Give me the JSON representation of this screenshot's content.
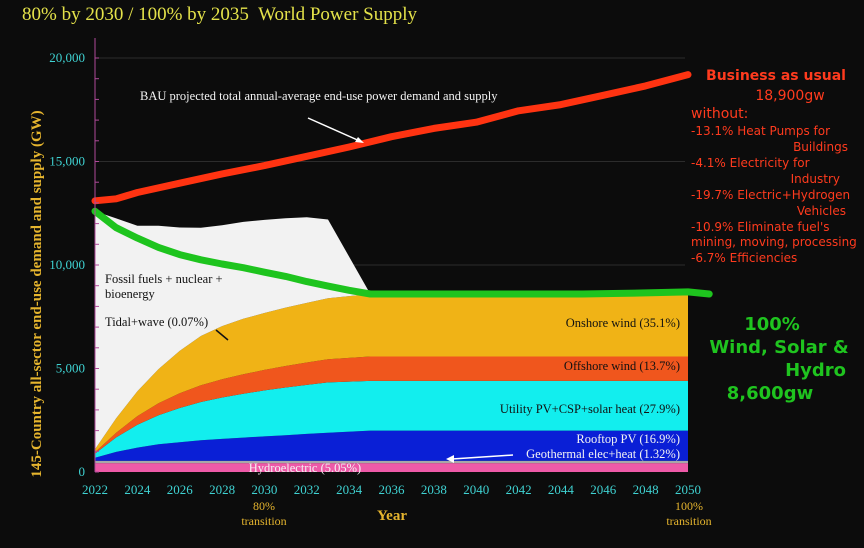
{
  "title": "80% by 2030 / 100% by 2035  World Power Supply",
  "chart_data": {
    "type": "area",
    "title": "80% by 2030 / 100% by 2035  World Power Supply",
    "xlabel": "Year",
    "ylabel": "145-Country all-sector end-use demand and supply (GW)",
    "xlim": [
      2022,
      2050
    ],
    "ylim": [
      0,
      20000
    ],
    "x_ticks": [
      "2022",
      "2024",
      "2026",
      "2028",
      "2030",
      "2032",
      "2034",
      "2036",
      "2038",
      "2040",
      "2042",
      "2044",
      "2046",
      "2048",
      "2050"
    ],
    "y_ticks": [
      {
        "value": 0,
        "label": "0"
      },
      {
        "value": 5000,
        "label": "5,000"
      },
      {
        "value": 10000,
        "label": "10,000"
      },
      {
        "value": 15000,
        "label": "15,000"
      },
      {
        "value": 20000,
        "label": "20,000"
      }
    ],
    "grid": true,
    "x_annotations": [
      {
        "x": 2030,
        "label": [
          "80%",
          "transition"
        ]
      },
      {
        "x": 2050,
        "label": [
          "100%",
          "transition"
        ]
      }
    ],
    "stack_x": [
      2022,
      2023,
      2024,
      2025,
      2026,
      2027,
      2028,
      2029,
      2030,
      2031,
      2032,
      2033,
      2035,
      2050
    ],
    "stacked_series": [
      {
        "name": "Hydroelectric (5.05%)",
        "color": "#ee5aa8",
        "values": [
          430,
          430,
          430,
          430,
          430,
          430,
          430,
          430,
          430,
          430,
          430,
          430,
          430,
          430
        ]
      },
      {
        "name": "Geothermal elec+heat (1.32%)",
        "color": "#a8a8a8",
        "values": [
          110,
          110,
          110,
          110,
          110,
          110,
          110,
          110,
          110,
          110,
          110,
          110,
          110,
          110
        ]
      },
      {
        "name": "Rooftop PV (16.9%)",
        "color": "#0a1fd6",
        "values": [
          150,
          430,
          640,
          800,
          900,
          990,
          1060,
          1120,
          1180,
          1240,
          1300,
          1360,
          1460,
          1460
        ]
      },
      {
        "name": "Utility PV+CSP+solar heat (27.9%)",
        "color": "#12eeee",
        "values": [
          200,
          700,
          1100,
          1400,
          1650,
          1850,
          2000,
          2120,
          2220,
          2300,
          2370,
          2430,
          2400,
          2400
        ]
      },
      {
        "name": "Offshore wind (13.7%)",
        "color": "#f0561d",
        "values": [
          60,
          230,
          420,
          580,
          710,
          810,
          880,
          940,
          990,
          1040,
          1080,
          1120,
          1180,
          1180
        ]
      },
      {
        "name": "Onshore wind (35.1%)",
        "color": "#f0b316",
        "values": [
          150,
          700,
          1200,
          1650,
          2050,
          2380,
          2570,
          2680,
          2750,
          2820,
          2880,
          2940,
          3020,
          3020
        ]
      },
      {
        "name": "Tidal+wave (0.07%)",
        "color": "#7a6a2a",
        "values": [
          0,
          0,
          0,
          0,
          0,
          0,
          0,
          0,
          0,
          0,
          0,
          0,
          0,
          0
        ]
      },
      {
        "name": "Fossil fuels + nuclear + bioenergy",
        "color": "#f2f2f2",
        "values": [
          11500,
          9650,
          8000,
          6930,
          5960,
          5230,
          4870,
          4680,
          4500,
          4320,
          4140,
          3810,
          0,
          0
        ]
      }
    ],
    "lines": [
      {
        "name": "BAU projected total annual-average end-use power demand and supply",
        "color": "#ff3311",
        "x": [
          2022,
          2023,
          2024,
          2026,
          2028,
          2030,
          2032,
          2034,
          2036,
          2038,
          2040,
          2042,
          2044,
          2046,
          2048,
          2050
        ],
        "values": [
          13100,
          13200,
          13500,
          13950,
          14400,
          14800,
          15250,
          15700,
          16200,
          16600,
          16900,
          17450,
          17750,
          18200,
          18650,
          19200
        ]
      },
      {
        "name": "100% Wind, Solar & Hydro supply",
        "color": "#1ec41e",
        "x": [
          2022,
          2023,
          2024,
          2025,
          2026,
          2027,
          2028,
          2029,
          2030,
          2031,
          2032,
          2033,
          2034,
          2035,
          2040,
          2045,
          2048,
          2050,
          2051
        ],
        "values": [
          12600,
          11800,
          11300,
          10850,
          10500,
          10250,
          10050,
          9870,
          9650,
          9450,
          9200,
          8980,
          8780,
          8600,
          8600,
          8600,
          8650,
          8700,
          8600
        ]
      }
    ],
    "annotations": {
      "bau_line_label": "BAU projected total annual-average end-use power demand and supply",
      "fossil_label": [
        "Fossil fuels + nuclear +",
        "bioenergy"
      ],
      "tidal_label": "Tidal+wave (0.07%)",
      "onshore_label": "Onshore wind (35.1%)",
      "offshore_label": "Offshore wind (13.7%)",
      "utility_label": "Utility PV+CSP+solar heat (27.9%)",
      "rooftop_label": "Rooftop PV (16.9%)",
      "geothermal_label": "Geothermal elec+heat (1.32%)",
      "hydro_label": "Hydroelectric (5.05%)"
    },
    "bau_box": {
      "title": "Business as usual",
      "total": "18,900gw",
      "without": "without:",
      "items": [
        [
          "-13.1% Heat Pumps for",
          "Buildings"
        ],
        [
          "-4.1% Electricity for",
          "Industry"
        ],
        [
          "-19.7% Electric+Hydrogen",
          "Vehicles"
        ],
        [
          "-10.9% Eliminate fuel's",
          "mining, moving, processing"
        ],
        [
          "-6.7% Efficiencies"
        ]
      ]
    },
    "wws_box": {
      "lines": [
        "100%",
        "Wind, Solar &",
        "Hydro",
        "8,600gw"
      ]
    }
  }
}
